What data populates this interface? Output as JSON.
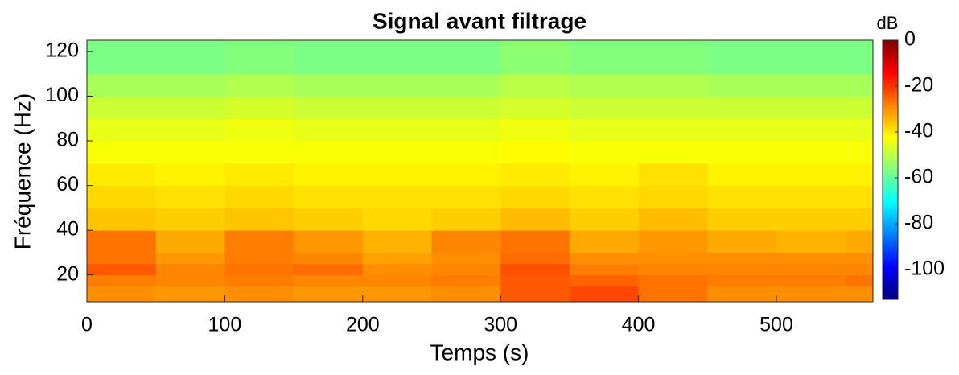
{
  "chart_data": {
    "type": "spectrogram",
    "title": "Signal avant filtrage",
    "xlabel": "Temps (s)",
    "ylabel": "Fréquence (Hz)",
    "colorbar_label": "dB",
    "colormap": "jet",
    "xlim": [
      0,
      570
    ],
    "xticks": [
      0,
      100,
      200,
      300,
      400,
      500
    ],
    "ylim": [
      8,
      125
    ],
    "yticks": [
      20,
      40,
      60,
      80,
      100,
      120
    ],
    "clim": [
      -113,
      0
    ],
    "cticks": [
      0,
      -20,
      -40,
      -60,
      -80,
      -100
    ],
    "xbins": [
      0,
      50,
      100,
      150,
      200,
      250,
      300,
      350,
      400,
      450,
      500,
      550,
      570
    ],
    "ybins": [
      8,
      15,
      20,
      25,
      30,
      40,
      50,
      60,
      70,
      80,
      90,
      100,
      110,
      125
    ],
    "z": [
      [
        -30,
        -31,
        -30,
        -31,
        -31,
        -30,
        -24,
        -22,
        -27,
        -30,
        -30,
        -30
      ],
      [
        -28,
        -29,
        -28,
        -29,
        -29,
        -28,
        -24,
        -25,
        -27,
        -28,
        -28,
        -27
      ],
      [
        -24,
        -29,
        -27,
        -26,
        -30,
        -29,
        -23,
        -28,
        -29,
        -29,
        -29,
        -29
      ],
      [
        -27,
        -31,
        -28,
        -29,
        -32,
        -30,
        -26,
        -30,
        -30,
        -30,
        -30,
        -30
      ],
      [
        -27,
        -33,
        -28,
        -31,
        -34,
        -29,
        -27,
        -33,
        -31,
        -33,
        -34,
        -33
      ],
      [
        -36,
        -37,
        -36,
        -37,
        -38,
        -37,
        -35,
        -37,
        -35,
        -37,
        -37,
        -37
      ],
      [
        -38,
        -39,
        -38,
        -39,
        -39,
        -39,
        -38,
        -39,
        -38,
        -39,
        -39,
        -39
      ],
      [
        -40,
        -41,
        -40,
        -41,
        -41,
        -41,
        -40,
        -41,
        -39,
        -41,
        -41,
        -41
      ],
      [
        -43,
        -43,
        -43,
        -43,
        -43,
        -43,
        -42,
        -43,
        -43,
        -43,
        -43,
        -43
      ],
      [
        -45,
        -45,
        -44,
        -45,
        -45,
        -45,
        -44,
        -45,
        -45,
        -45,
        -45,
        -45
      ],
      [
        -48,
        -48,
        -47,
        -48,
        -48,
        -48,
        -47,
        -48,
        -48,
        -48,
        -48,
        -48
      ],
      [
        -52,
        -52,
        -51,
        -52,
        -52,
        -52,
        -50,
        -51,
        -51,
        -52,
        -52,
        -52
      ],
      [
        -57,
        -57,
        -56,
        -57,
        -57,
        -57,
        -55,
        -56,
        -56,
        -57,
        -57,
        -57
      ]
    ]
  }
}
